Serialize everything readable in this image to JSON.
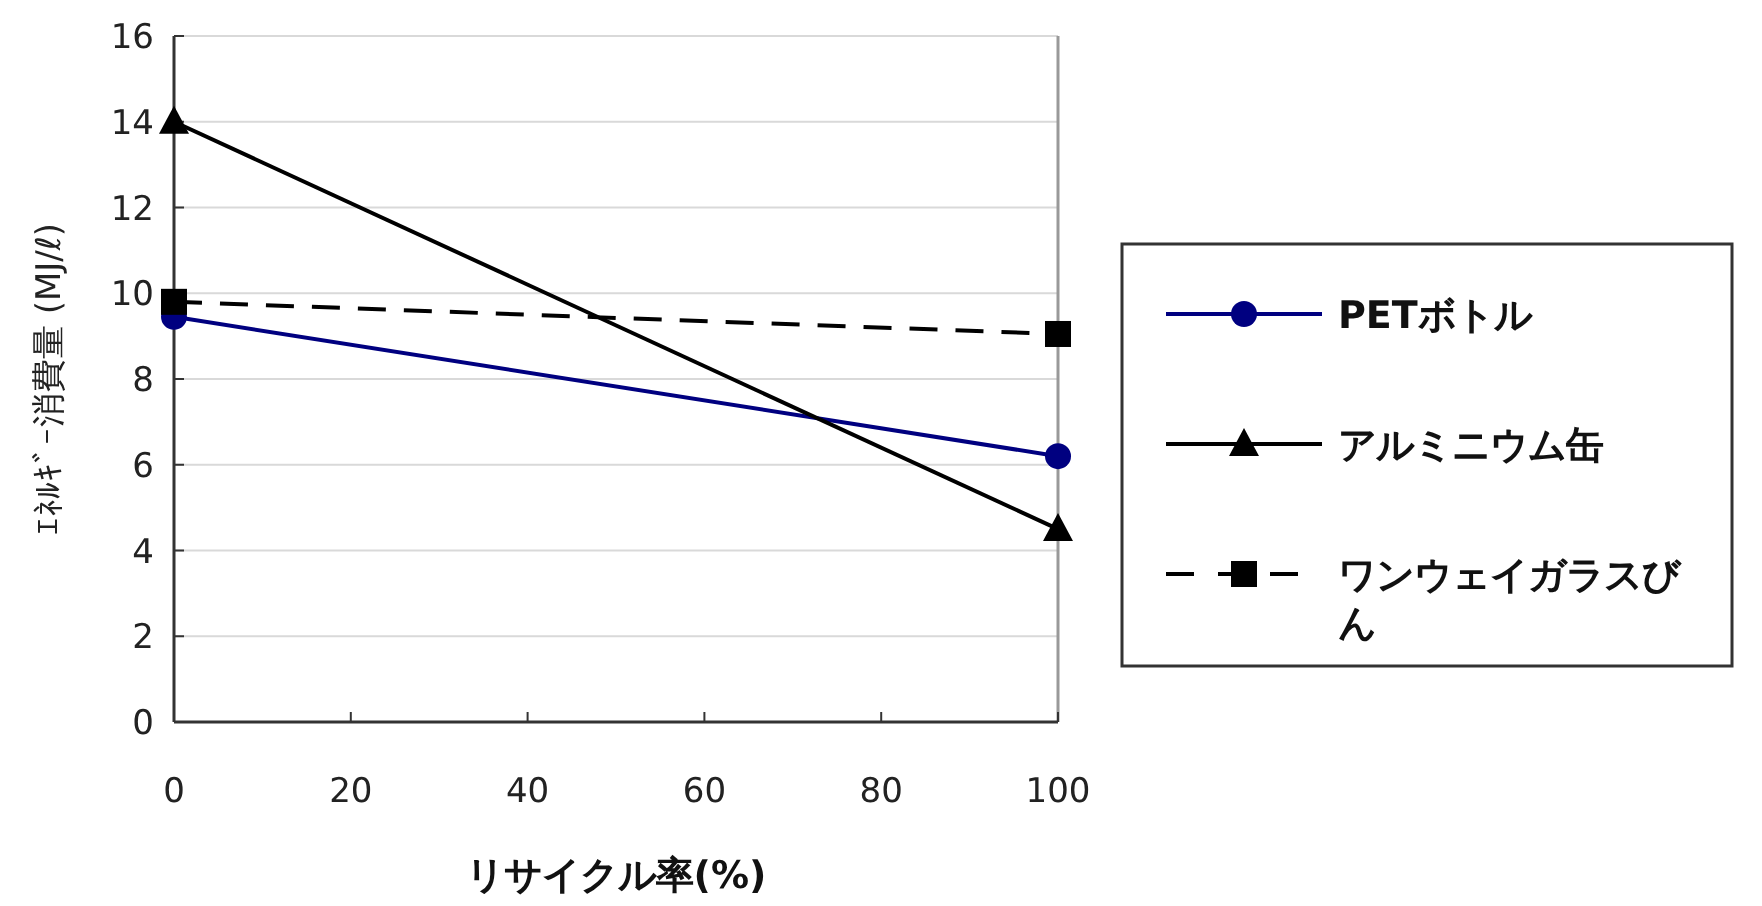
{
  "chart_data": {
    "type": "line",
    "xlabel": "リサイクル率(%)",
    "ylabel": "ｴﾈﾙｷﾞｰ消費量 (MJ/ℓ)",
    "x": [
      0,
      100
    ],
    "xlim": [
      0,
      100
    ],
    "xticks": [
      0,
      20,
      40,
      60,
      80,
      100
    ],
    "ylim": [
      0,
      16
    ],
    "yticks": [
      0,
      2,
      4,
      6,
      8,
      10,
      12,
      14,
      16
    ],
    "grid": "y",
    "legend": "right",
    "series": [
      {
        "name": "PETボトル",
        "color": "#000080",
        "values": [
          9.45,
          6.2
        ],
        "marker": "circle",
        "line_style": "solid"
      },
      {
        "name": "アルミニウム缶",
        "color": "#000000",
        "values": [
          14,
          4.5
        ],
        "marker": "triangle",
        "line_style": "solid"
      },
      {
        "name": "ワンウェイガラスびん",
        "color": "#000000",
        "values": [
          9.8,
          9.05
        ],
        "marker": "square",
        "line_style": "dashed"
      }
    ]
  }
}
